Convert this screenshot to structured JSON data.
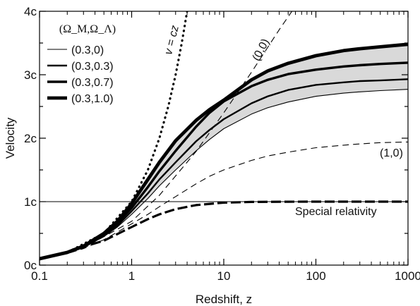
{
  "chart_data": {
    "type": "line",
    "xlabel": "Redshift, z",
    "ylabel": "Velocity",
    "x_scale": "log",
    "xlim": [
      0.1,
      1000
    ],
    "ylim": [
      0,
      4
    ],
    "x_ticks": [
      {
        "value": 0.1,
        "label": "0.1"
      },
      {
        "value": 1,
        "label": "1"
      },
      {
        "value": 10,
        "label": "10"
      },
      {
        "value": 100,
        "label": "100"
      },
      {
        "value": 1000,
        "label": "1000"
      }
    ],
    "y_ticks": [
      {
        "value": 0,
        "label": "0c"
      },
      {
        "value": 1,
        "label": "1c"
      },
      {
        "value": 2,
        "label": "2c"
      },
      {
        "value": 3,
        "label": "3c"
      },
      {
        "value": 4,
        "label": "4c"
      }
    ],
    "legend_title": "(Ω_M,Ω_Λ)",
    "legend": [
      {
        "label": "(0.3,0)"
      },
      {
        "label": "(0.3,0.3)"
      },
      {
        "label": "(0.3,0.7)"
      },
      {
        "label": "(0.3,1.0)"
      }
    ],
    "shaded_band": "between (0.3,0) and (0.3,1.0)",
    "hline": {
      "y": 1,
      "label": "Special relativity"
    },
    "series": [
      {
        "key": "s0",
        "label": "(0.3,0)",
        "style": "thin-solid",
        "x": [
          0.1,
          0.2,
          0.3,
          0.5,
          0.7,
          1,
          1.5,
          2,
          3,
          5,
          7,
          10,
          20,
          30,
          50,
          100,
          200,
          300,
          500,
          1000
        ],
        "y": [
          0.1,
          0.19,
          0.28,
          0.45,
          0.6,
          0.8,
          1.05,
          1.25,
          1.5,
          1.8,
          1.98,
          2.15,
          2.38,
          2.48,
          2.57,
          2.66,
          2.71,
          2.73,
          2.75,
          2.77
        ]
      },
      {
        "key": "s1",
        "label": "(0.3,0.3)",
        "style": "medium-solid",
        "x": [
          0.1,
          0.2,
          0.3,
          0.5,
          0.7,
          1,
          1.5,
          2,
          3,
          5,
          7,
          10,
          20,
          30,
          50,
          100,
          200,
          300,
          500,
          1000
        ],
        "y": [
          0.1,
          0.19,
          0.28,
          0.46,
          0.62,
          0.85,
          1.13,
          1.35,
          1.62,
          1.95,
          2.13,
          2.3,
          2.55,
          2.66,
          2.76,
          2.84,
          2.88,
          2.9,
          2.91,
          2.93
        ]
      },
      {
        "key": "s2",
        "label": "(0.3,0.7)",
        "style": "thick-solid",
        "x": [
          0.1,
          0.2,
          0.3,
          0.5,
          0.7,
          1,
          1.5,
          2,
          3,
          5,
          7,
          10,
          20,
          30,
          50,
          100,
          200,
          300,
          500,
          1000
        ],
        "y": [
          0.1,
          0.2,
          0.29,
          0.48,
          0.66,
          0.9,
          1.23,
          1.48,
          1.8,
          2.18,
          2.4,
          2.58,
          2.82,
          2.92,
          3.01,
          3.08,
          3.13,
          3.15,
          3.17,
          3.19
        ]
      },
      {
        "key": "s3",
        "label": "(0.3,1.0)",
        "style": "extra-thick-solid",
        "x": [
          0.1,
          0.2,
          0.3,
          0.5,
          0.7,
          1,
          1.5,
          2,
          3,
          5,
          7,
          10,
          20,
          30,
          50,
          100,
          200,
          300,
          500,
          1000
        ],
        "y": [
          0.1,
          0.2,
          0.3,
          0.5,
          0.69,
          0.97,
          1.35,
          1.62,
          1.96,
          2.28,
          2.45,
          2.6,
          2.92,
          3.06,
          3.18,
          3.3,
          3.38,
          3.41,
          3.44,
          3.48
        ]
      },
      {
        "key": "s10",
        "label": "(1,0)",
        "style": "thin-dashed",
        "x": [
          0.1,
          0.2,
          0.3,
          0.5,
          0.7,
          1,
          1.5,
          2,
          3,
          5,
          7,
          10,
          20,
          30,
          50,
          100,
          200,
          300,
          500,
          1000
        ],
        "y": [
          0.09,
          0.18,
          0.26,
          0.4,
          0.52,
          0.65,
          0.8,
          0.92,
          1.08,
          1.28,
          1.4,
          1.5,
          1.65,
          1.72,
          1.78,
          1.85,
          1.89,
          1.91,
          1.93,
          1.94
        ]
      },
      {
        "key": "s00",
        "label": "(0,0)",
        "style": "thin-dashed",
        "x": [
          0.1,
          0.3,
          1,
          2,
          5,
          10,
          20,
          40,
          55
        ],
        "y": [
          0.1,
          0.27,
          0.69,
          1.1,
          1.79,
          2.4,
          3.04,
          3.71,
          4.0
        ]
      },
      {
        "key": "vcz",
        "label": "v = cz",
        "style": "dotted",
        "x": [
          0.1,
          0.2,
          0.5,
          1,
          1.5,
          2,
          2.5,
          3,
          3.5,
          4
        ],
        "y": [
          0.1,
          0.2,
          0.5,
          1,
          1.5,
          2,
          2.5,
          3,
          3.5,
          4
        ]
      },
      {
        "key": "sr",
        "label": "Special relativity",
        "style": "thick-dashed",
        "x": [
          0.1,
          0.2,
          0.3,
          0.5,
          0.7,
          1,
          1.5,
          2,
          3,
          5,
          10,
          20,
          50,
          100,
          1000
        ],
        "y": [
          0.1,
          0.198,
          0.29,
          0.385,
          0.49,
          0.6,
          0.724,
          0.8,
          0.882,
          0.946,
          0.984,
          0.996,
          0.999,
          1.0,
          1.0
        ]
      }
    ],
    "annotations": [
      {
        "text": "v = cz"
      },
      {
        "text": "(0,0)"
      },
      {
        "text": "(1,0)"
      },
      {
        "text": "Special relativity"
      }
    ]
  }
}
